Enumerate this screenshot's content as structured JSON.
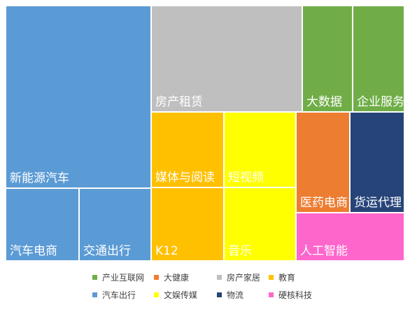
{
  "chart_data": {
    "type": "treemap",
    "grid": false,
    "legend_position": "bottom",
    "categories": [
      {
        "name": "产业互联网",
        "color": "#70AD47"
      },
      {
        "name": "大健康",
        "color": "#ED7D31"
      },
      {
        "name": "房产家居",
        "color": "#BFBFBF"
      },
      {
        "name": "教育",
        "color": "#FFC000"
      },
      {
        "name": "汽车出行",
        "color": "#5B9BD5"
      },
      {
        "name": "文娱传媒",
        "color": "#FFFF00"
      },
      {
        "name": "物流",
        "color": "#264478"
      },
      {
        "name": "硬核科技",
        "color": "#FF66CC"
      }
    ],
    "items": [
      {
        "label": "新能源汽车",
        "category": "汽车出行"
      },
      {
        "label": "汽车电商",
        "category": "汽车出行"
      },
      {
        "label": "交通出行",
        "category": "汽车出行"
      },
      {
        "label": "房产租赁",
        "category": "房产家居"
      },
      {
        "label": "大数据",
        "category": "产业互联网"
      },
      {
        "label": "企业服务",
        "category": "产业互联网"
      },
      {
        "label": "媒体与阅读",
        "category": "教育"
      },
      {
        "label": "K12",
        "category": "教育"
      },
      {
        "label": "短视频",
        "category": "文娱传媒"
      },
      {
        "label": "音乐",
        "category": "文娱传媒"
      },
      {
        "label": "医药电商",
        "category": "大健康"
      },
      {
        "label": "货运代理",
        "category": "物流"
      },
      {
        "label": "人工智能",
        "category": "硬核科技"
      }
    ]
  }
}
